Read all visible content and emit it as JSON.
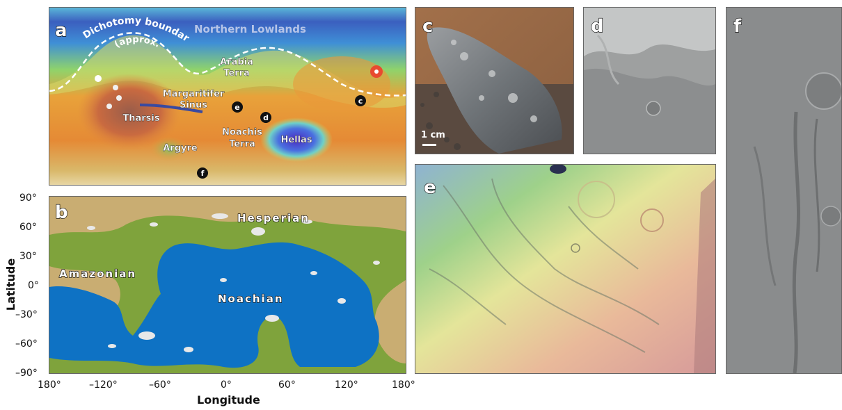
{
  "panels": {
    "a": {
      "letter": "a",
      "labels": {
        "dichotomy_line1": "Dichotomy boundary",
        "dichotomy_line2": "(approx.)",
        "northern_lowlands": "Northern Lowlands",
        "arabia1": "Arabia",
        "arabia2": "Terra",
        "margaritifer1": "Margaritifer",
        "margaritifer2": "Sinus",
        "tharsis": "Tharsis",
        "noachis1": "Noachis",
        "noachis2": "Terra",
        "hellas": "Hellas",
        "argyre": "Argyre"
      },
      "site_markers": [
        "c",
        "d",
        "e",
        "f"
      ]
    },
    "b": {
      "letter": "b",
      "labels": {
        "hesperian": "Hesperian",
        "amazonian": "Amazonian",
        "noachian": "Noachian"
      },
      "colors": {
        "amazonian": "#c9ad72",
        "hesperian": "#7fa33c",
        "noachian": "#0e72c4",
        "ice": "#e8e8e8"
      }
    },
    "c": {
      "letter": "c",
      "scale_label": "1 cm"
    },
    "d": {
      "letter": "d"
    },
    "e": {
      "letter": "e"
    },
    "f": {
      "letter": "f"
    }
  },
  "axes": {
    "x_title": "Longitude",
    "y_title": "Latitude",
    "x_ticks": [
      "180°",
      "–120°",
      "–60°",
      "0°",
      "60°",
      "120°",
      "180°"
    ],
    "y_ticks": [
      "90°",
      "60°",
      "30°",
      "0°",
      "–30°",
      "–60°",
      "–90°"
    ]
  }
}
